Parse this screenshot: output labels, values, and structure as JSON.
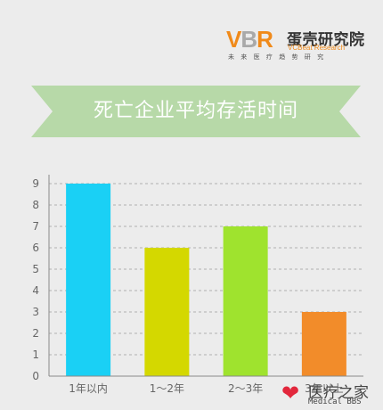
{
  "brand": {
    "mark_v": "V",
    "mark_b": "B",
    "mark_r": "R",
    "name_cn": "蛋壳研究院",
    "name_en": "VCBeat Research",
    "tagline": "未来医疗趋势研究"
  },
  "colors": {
    "banner": "#b7d9a8",
    "accent": "#f08a1a",
    "gridline": "#b0b0b0",
    "axis": "#8a8a8a",
    "text": "#666666"
  },
  "watermark": {
    "icon": "heart-pulse-icon",
    "name_cn": "医疗之家",
    "name_en": "Medical BBS"
  },
  "chart_data": {
    "type": "bar",
    "title": "死亡企业平均存活时间",
    "categories": [
      "1年以内",
      "1～2年",
      "2～3年",
      "3年以上"
    ],
    "values": [
      9,
      6,
      7,
      3
    ],
    "bar_colors": [
      "#1ad0f5",
      "#d4d800",
      "#9fe32e",
      "#f28c2a"
    ],
    "ylim": [
      0,
      9
    ],
    "yticks": [
      "0",
      "1",
      "2",
      "3",
      "4",
      "5",
      "6",
      "7",
      "8",
      "9"
    ],
    "grid": true,
    "legend": "none",
    "xlabel": "",
    "ylabel": ""
  }
}
